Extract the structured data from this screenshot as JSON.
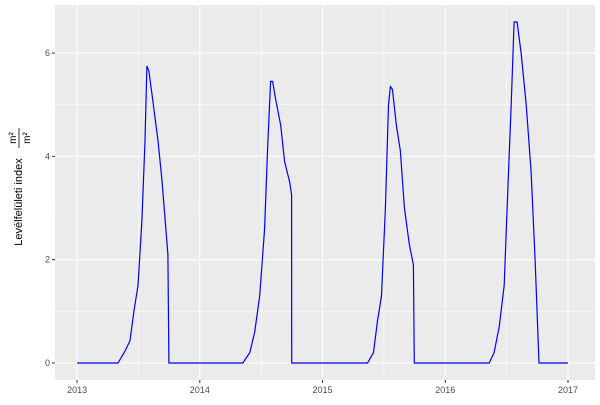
{
  "chart_data": {
    "type": "line",
    "ylabel": "Levélfelületi index",
    "ylabel_unit_num": "m²",
    "ylabel_unit_den": "m²",
    "xlabel": "",
    "xlim": [
      2012.82,
      2017.22
    ],
    "ylim": [
      -0.33,
      6.93
    ],
    "x_ticks": [
      2013,
      2014,
      2015,
      2016,
      2017
    ],
    "x_tick_labels": [
      "2013",
      "2014",
      "2015",
      "2016",
      "2017"
    ],
    "y_ticks": [
      0,
      2,
      4,
      6
    ],
    "y_tick_labels": [
      "0",
      "2",
      "4",
      "6"
    ],
    "grid": true,
    "colors": {
      "line": "#0000FF",
      "panel": "#EBEBEB",
      "grid": "#FFFFFF"
    },
    "series": [
      {
        "x": [
          2013.0,
          2013.333,
          2013.39,
          2013.431,
          2013.463,
          2013.496,
          2013.528,
          2013.553,
          2013.569,
          2013.585,
          2013.61,
          2013.659,
          2013.691,
          2013.715,
          2013.74,
          2013.748,
          2014.35,
          2014.407,
          2014.447,
          2014.488,
          2014.528,
          2014.553,
          2014.577,
          2014.593,
          2014.618,
          2014.659,
          2014.691,
          2014.732,
          2014.748,
          2014.749,
          2015.366,
          2015.415,
          2015.447,
          2015.48,
          2015.512,
          2015.537,
          2015.553,
          2015.569,
          2015.602,
          2015.634,
          2015.667,
          2015.707,
          2015.74,
          2015.748,
          2016.358,
          2016.398,
          2016.439,
          2016.48,
          2016.512,
          2016.537,
          2016.561,
          2016.585,
          2016.618,
          2016.659,
          2016.699,
          2016.732,
          2016.764,
          2017.0
        ],
        "y": [
          0,
          0,
          0.23,
          0.43,
          1.0,
          1.5,
          2.75,
          4.3,
          5.75,
          5.65,
          5.2,
          4.3,
          3.55,
          2.85,
          2.1,
          0,
          0,
          0.2,
          0.6,
          1.3,
          2.6,
          4.2,
          5.45,
          5.45,
          5.1,
          4.6,
          3.9,
          3.5,
          3.25,
          0,
          0,
          0.2,
          0.8,
          1.3,
          3.0,
          5.0,
          5.35,
          5.3,
          4.6,
          4.1,
          3.0,
          2.3,
          1.9,
          0,
          0,
          0.2,
          0.7,
          1.5,
          3.5,
          5.0,
          6.6,
          6.6,
          6.0,
          5.0,
          3.7,
          2.0,
          0,
          0
        ]
      }
    ]
  }
}
